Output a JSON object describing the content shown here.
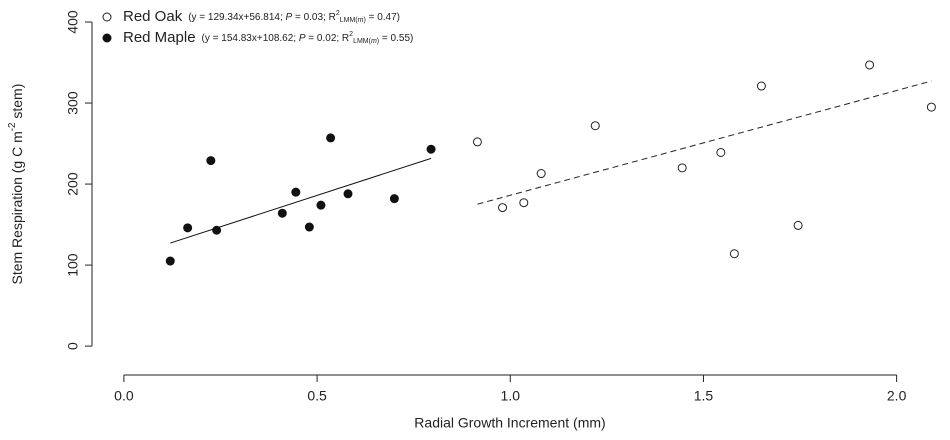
{
  "chart_data": {
    "type": "scatter",
    "xlabel": "Radial Growth Increment (mm)",
    "ylabel": [
      "Stem Respiration (g C m",
      {
        "sup": "-2"
      },
      " stem)"
    ],
    "xlim": [
      -0.08,
      2.12
    ],
    "ylim": [
      -27,
      421
    ],
    "xticks": [
      {
        "value": 0,
        "label": "0.0"
      },
      0.5,
      {
        "value": 1,
        "label": "1.0"
      },
      1.5,
      {
        "value": 2,
        "label": "2.0"
      }
    ],
    "yticks": [
      0,
      100,
      200,
      300,
      400
    ],
    "grid": false,
    "legend": "top-left",
    "series": [
      {
        "name": "Red Oak",
        "color": "#222222",
        "marker": "open",
        "dash": true,
        "annotation": [
          "(y = 129.34x+56.814; ",
          {
            "italic": "P"
          },
          " = 0.03; R",
          {
            "sup": "2"
          },
          {
            "sub": "LMM("
          },
          {
            "sub_italic": "m"
          },
          {
            "sub": ")"
          },
          " = 0.47)"
        ],
        "fit": {
          "slope": 129.34,
          "intercept": 56.814
        },
        "x": [
          0.915,
          0.98,
          1.035,
          1.08,
          1.22,
          1.445,
          1.545,
          1.58,
          1.65,
          1.745,
          1.93,
          2.09
        ],
        "values": [
          252,
          171,
          177,
          213,
          272,
          220,
          239,
          114,
          321,
          149,
          347,
          295
        ]
      },
      {
        "name": "Red Maple",
        "color": "#111111",
        "marker": "filled",
        "dash": false,
        "annotation": [
          "(y = 154.83x+108.62; ",
          {
            "italic": "P"
          },
          " = 0.02; R",
          {
            "sup": "2"
          },
          {
            "sub": "LMM("
          },
          {
            "sub_italic": "m"
          },
          {
            "sub": ")"
          },
          " = 0.55)"
        ],
        "fit": {
          "slope": 154.83,
          "intercept": 108.62
        },
        "x": [
          0.12,
          0.165,
          0.225,
          0.24,
          0.41,
          0.445,
          0.48,
          0.51,
          0.535,
          0.58,
          0.7,
          0.795
        ],
        "values": [
          105,
          146,
          229,
          143,
          164,
          190,
          147,
          174,
          257,
          188,
          182,
          243
        ]
      }
    ]
  }
}
